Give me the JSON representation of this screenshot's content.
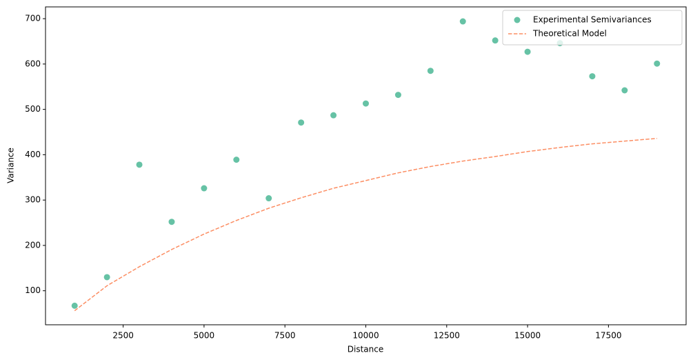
{
  "chart_data": {
    "type": "scatter",
    "x_label": "Distance",
    "y_label": "Variance",
    "x": [
      1000,
      2000,
      3000,
      4000,
      5000,
      6000,
      7000,
      8000,
      9000,
      10000,
      11000,
      12000,
      13000,
      14000,
      15000,
      16000,
      17000,
      18000,
      19000
    ],
    "series": [
      {
        "name": "Experimental Semivariances",
        "type": "scatter",
        "color": "#66c2a5",
        "values": [
          67,
          130,
          378,
          252,
          326,
          389,
          304,
          471,
          487,
          513,
          532,
          585,
          694,
          652,
          627,
          646,
          573,
          542,
          601
        ]
      },
      {
        "name": "Theoretical Model",
        "type": "line",
        "dashed": true,
        "color": "#fc8d62",
        "values": [
          56,
          111,
          153,
          191,
          225,
          255,
          282,
          305,
          326,
          343,
          360,
          374,
          386,
          396,
          407,
          416,
          424,
          430,
          436
        ]
      }
    ],
    "xlim": [
      100,
      19900
    ],
    "xticks": [
      2500,
      5000,
      7500,
      10000,
      12500,
      15000,
      17500
    ],
    "ylim": [
      25,
      726
    ],
    "yticks": [
      100,
      200,
      300,
      400,
      500,
      600,
      700
    ],
    "legend": "upper right"
  }
}
